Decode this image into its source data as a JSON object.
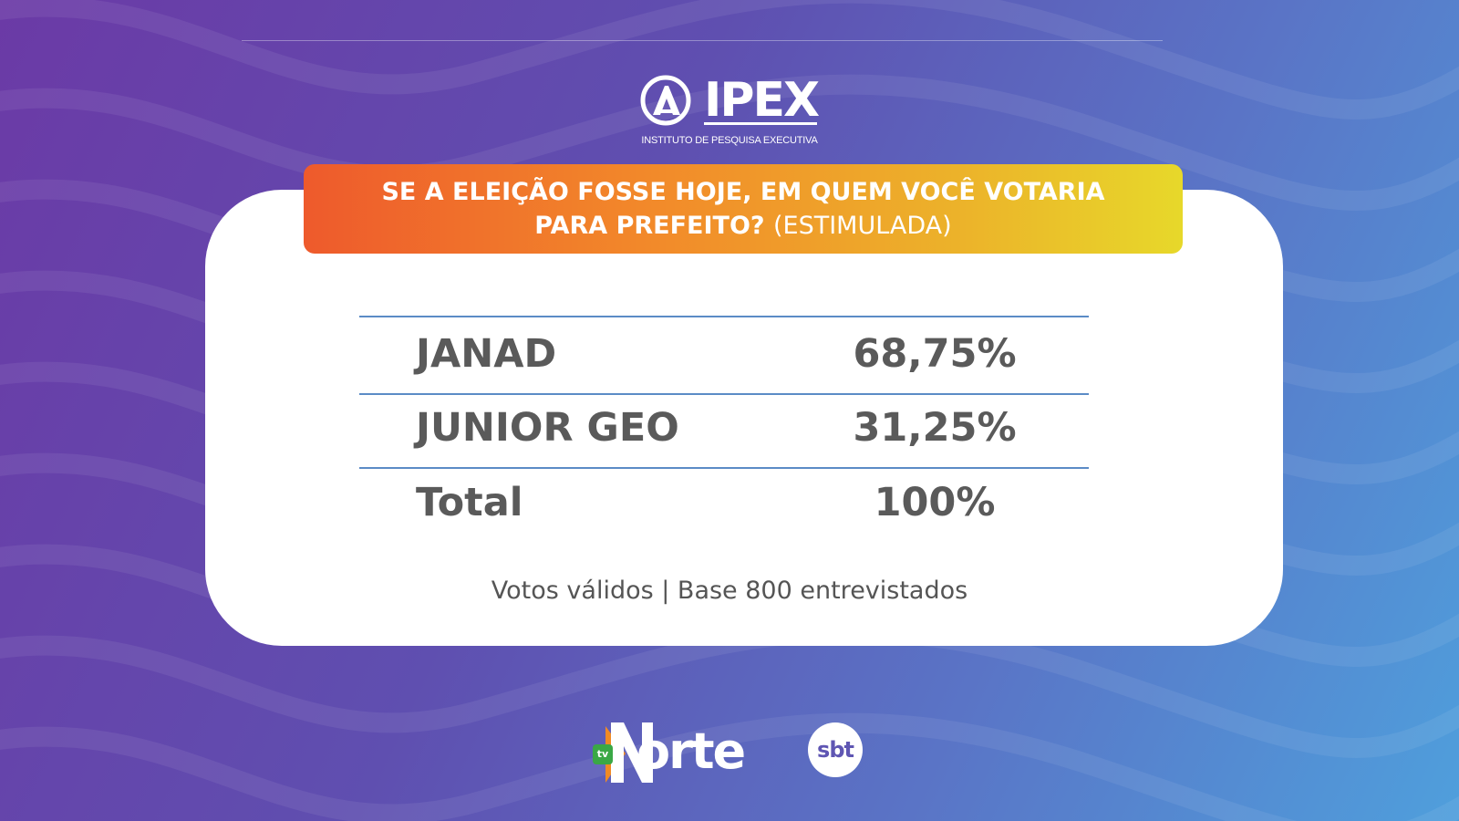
{
  "logo": {
    "name": "IPEX",
    "subtitle": "INSTITUTO DE PESQUISA EXECUTIVA"
  },
  "question": {
    "line1": "SE A ELEIÇÃO FOSSE HOJE, EM QUEM VOCÊ VOTARIA",
    "line2_main": "PARA PREFEITO?",
    "line2_sub": "(ESTIMULADA)"
  },
  "results": [
    {
      "label": "JANAD",
      "value": "68,75%"
    },
    {
      "label": "JUNIOR GEO",
      "value": "31,25%"
    },
    {
      "label": "Total",
      "value": "100%"
    }
  ],
  "footnote": "Votos válidos | Base 800 entrevistados",
  "brands": {
    "tv_badge": "tv",
    "norte": "orte",
    "sbt": "sbt"
  },
  "colors": {
    "accent_rule": "#5b8bc6",
    "banner_start": "#ee5a2c",
    "banner_end": "#e7d82a",
    "text": "#5a5a5a"
  }
}
